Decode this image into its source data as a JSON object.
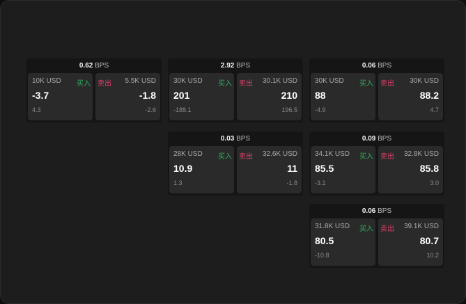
{
  "unit": "BPS",
  "buy_label": "买入",
  "sell_label": "卖出",
  "colors": {
    "buy": "#2fae5c",
    "sell": "#e0406a"
  },
  "quotes": [
    {
      "spread": "0.62",
      "bid_size": "10K USD",
      "bid": "-3.7",
      "bid_change": "4.3",
      "ask_size": "5.5K USD",
      "ask": "-1.8",
      "ask_change": "-2.6"
    },
    {
      "spread": "2.92",
      "bid_size": "30K USD",
      "bid": "201",
      "bid_change": "-188.1",
      "ask_size": "30.1K USD",
      "ask": "210",
      "ask_change": "196.5"
    },
    {
      "spread": "0.06",
      "bid_size": "30K USD",
      "bid": "88",
      "bid_change": "-4.9",
      "ask_size": "30K USD",
      "ask": "88.2",
      "ask_change": "4.7"
    },
    {
      "spread": "0.03",
      "bid_size": "28K USD",
      "bid": "10.9",
      "bid_change": "1.3",
      "ask_size": "32.6K USD",
      "ask": "11",
      "ask_change": "-1.8"
    },
    {
      "spread": "0.09",
      "bid_size": "34.1K USD",
      "bid": "85.5",
      "bid_change": "-3.1",
      "ask_size": "32.8K USD",
      "ask": "85.8",
      "ask_change": "3.0"
    },
    {
      "spread": "0.06",
      "bid_size": "31.8K USD",
      "bid": "80.5",
      "bid_change": "-10.8",
      "ask_size": "39.1K USD",
      "ask": "80.7",
      "ask_change": "10.2"
    }
  ]
}
